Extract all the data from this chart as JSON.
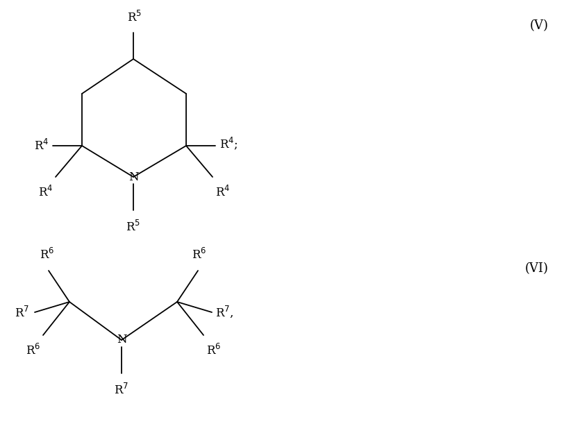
{
  "bg_color": "#ffffff",
  "line_color": "#000000",
  "text_color": "#000000",
  "font_size": 12,
  "label_V": "(V)",
  "label_VI": "(VI)"
}
